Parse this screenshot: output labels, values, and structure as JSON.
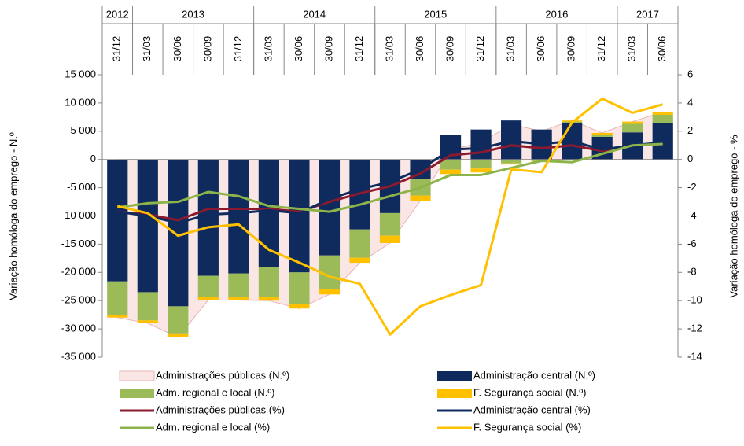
{
  "chart_data": {
    "type": "combo",
    "groups": [
      {
        "label": "2012",
        "categories": [
          "31/12"
        ]
      },
      {
        "label": "2013",
        "categories": [
          "31/03",
          "30/06",
          "30/09",
          "31/12"
        ]
      },
      {
        "label": "2014",
        "categories": [
          "31/03",
          "30/06",
          "30/09",
          "31/12"
        ]
      },
      {
        "label": "2015",
        "categories": [
          "31/03",
          "30/06",
          "30/09",
          "31/12"
        ]
      },
      {
        "label": "2016",
        "categories": [
          "31/03",
          "30/06",
          "30/09",
          "31/12"
        ]
      },
      {
        "label": "2017",
        "categories": [
          "31/03",
          "30/06"
        ]
      }
    ],
    "ylabel": "Variação homóloga do emprego - N.º",
    "y2label": "Variação homóloga do emprego - %",
    "ylim": [
      -35000,
      15000
    ],
    "yticks": [
      {
        "value": -35000,
        "label": "-35 000"
      },
      {
        "value": -30000,
        "label": "-30 000"
      },
      {
        "value": -25000,
        "label": "-25 000"
      },
      {
        "value": -20000,
        "label": "-20 000"
      },
      {
        "value": -15000,
        "label": "-15 000"
      },
      {
        "value": -10000,
        "label": "-10 000"
      },
      {
        "value": -5000,
        "label": "-5 000"
      },
      0,
      {
        "value": 5000,
        "label": "5 000"
      },
      {
        "value": 10000,
        "label": "10 000"
      },
      {
        "value": 15000,
        "label": "15 000"
      }
    ],
    "y2lim": [
      -14,
      6
    ],
    "y2ticks": [
      -14,
      -12,
      -10,
      -8,
      -6,
      -4,
      -2,
      0,
      2,
      4,
      6
    ],
    "series": [
      {
        "name": "Administrações públicas (N.º)",
        "type": "area",
        "color": "#fbe6e6",
        "values": [
          -28000,
          -29000,
          -31500,
          -24900,
          -24900,
          -25000,
          -26400,
          -23900,
          -18300,
          -14800,
          -7300,
          1700,
          3000,
          6200,
          5000,
          6900,
          4700,
          6700,
          8400
        ]
      },
      {
        "name": "Administração central (N.º)",
        "type": "bar",
        "color": "#0f2b5e",
        "values": [
          -21600,
          -23500,
          -26000,
          -20600,
          -20200,
          -19000,
          -20000,
          -17000,
          -12400,
          -9500,
          -3400,
          4300,
          5300,
          6900,
          5300,
          6500,
          4000,
          4800,
          6400
        ]
      },
      {
        "name": "Adm. regional e local (N.º)",
        "type": "bar",
        "color": "#9bbb59",
        "values": [
          -5900,
          -5000,
          -4800,
          -3700,
          -4200,
          -5400,
          -5600,
          -6000,
          -5000,
          -4000,
          -3000,
          -1800,
          -1600,
          -700,
          -300,
          200,
          300,
          1500,
          1500
        ]
      },
      {
        "name": "F. Segurança social  (N.º)",
        "type": "bar",
        "color": "#ffc000",
        "values": [
          -500,
          -500,
          -700,
          -600,
          -500,
          -600,
          -800,
          -900,
          -900,
          -1300,
          -900,
          -800,
          -700,
          -200,
          -100,
          200,
          400,
          400,
          500
        ]
      },
      {
        "name": "Administrações públicas (%)",
        "type": "line",
        "axis": "y2",
        "color": "#8b1a2e",
        "values": [
          -3.7,
          -3.9,
          -4.3,
          -3.5,
          -3.5,
          -3.5,
          -3.7,
          -3.0,
          -2.4,
          -1.9,
          -1.0,
          0.3,
          0.5,
          1.0,
          0.8,
          1.0,
          0.6,
          1.0,
          1.1
        ]
      },
      {
        "name": "Administração central  (%)",
        "type": "line",
        "axis": "y2",
        "color": "#0f2b5e",
        "values": [
          -3.7,
          -4.0,
          -4.5,
          -3.9,
          -3.8,
          -3.6,
          -3.8,
          -2.8,
          -2.1,
          -1.6,
          -0.7,
          0.7,
          0.8,
          1.3,
          1.1,
          1.3,
          0.7,
          1.0,
          1.2
        ]
      },
      {
        "name": "Adm. regional e local (%)",
        "type": "line",
        "axis": "y2",
        "color": "#8db44a",
        "values": [
          -3.4,
          -3.1,
          -3.0,
          -2.3,
          -2.6,
          -3.3,
          -3.5,
          -3.7,
          -3.2,
          -2.6,
          -2.0,
          -1.1,
          -1.1,
          -0.6,
          -0.1,
          -0.2,
          0.4,
          1.0,
          1.1
        ]
      },
      {
        "name": "F. Segurança social  (%)",
        "type": "line",
        "axis": "y2",
        "color": "#ffc000",
        "values": [
          -3.3,
          -3.8,
          -5.4,
          -4.8,
          -4.6,
          -6.4,
          -7.3,
          -8.3,
          -8.8,
          -12.4,
          -10.4,
          -9.6,
          -8.9,
          -0.7,
          -0.9,
          2.6,
          4.3,
          3.3,
          3.9
        ]
      }
    ]
  }
}
